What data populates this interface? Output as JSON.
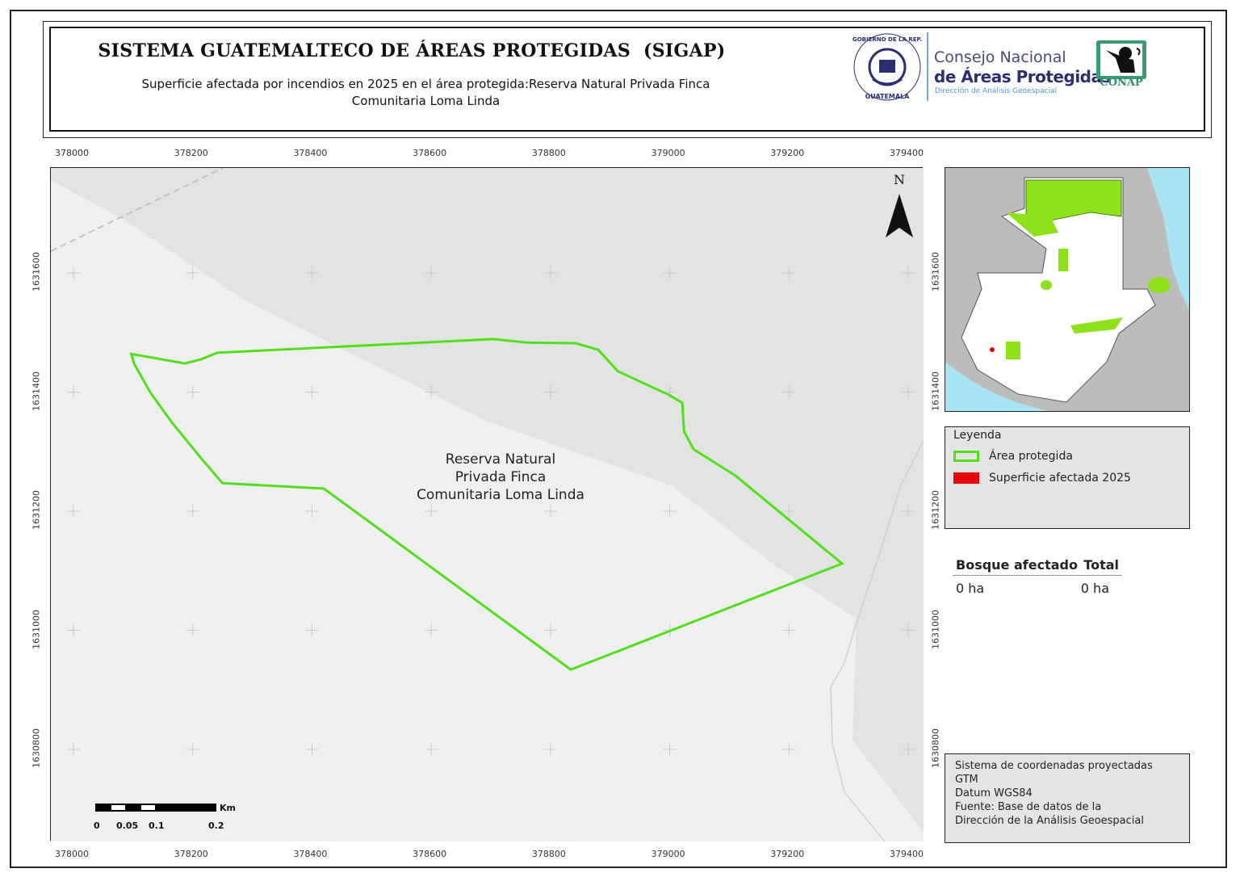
{
  "header": {
    "title": "SISTEMA GUATEMALTECO DE ÁREAS PROTEGIDAS  (SIGAP)",
    "subtitle": "Superficie afectada por incendios en 2025 en el área protegida:Reserva Natural Privada Finca Comunitaria Loma Linda",
    "logo_seal_text": "GOBIERNO DE LA REPÚBLICA · GUATEMALA",
    "org_line1": "Consejo Nacional",
    "org_line2": "de Áreas Protegidas",
    "org_line3": "Dirección de Análisis Geoespacial",
    "conap_label": "CONAP"
  },
  "map": {
    "easting_ticks": [
      "378000",
      "378200",
      "378400",
      "378600",
      "378800",
      "379000",
      "379200",
      "379400"
    ],
    "northing_ticks": [
      "1631600",
      "1631400",
      "1631200",
      "1631000",
      "1630800"
    ],
    "area_label": "Reserva Natural\nPrivada Finca\nComunitaria Loma Linda",
    "north_label": "N",
    "protected_area_outline": [
      [
        378097,
        1631464
      ],
      [
        378102,
        1631447
      ],
      [
        378129,
        1631399
      ],
      [
        378165,
        1631349
      ],
      [
        378214,
        1631289
      ],
      [
        378250,
        1631247
      ],
      [
        378420,
        1631238
      ],
      [
        378834,
        1630934
      ],
      [
        379289,
        1631112
      ],
      [
        379110,
        1631260
      ],
      [
        379040,
        1631304
      ],
      [
        379024,
        1631334
      ],
      [
        379021,
        1631382
      ],
      [
        378999,
        1631395
      ],
      [
        378913,
        1631435
      ],
      [
        378880,
        1631471
      ],
      [
        378842,
        1631482
      ],
      [
        378761,
        1631483
      ],
      [
        378704,
        1631489
      ],
      [
        378241,
        1631466
      ],
      [
        378214,
        1631455
      ],
      [
        378187,
        1631448
      ]
    ],
    "colors": {
      "outline": "#4fe01a",
      "affected": "#e8000b",
      "basemap_light": "#efefef",
      "basemap_dark": "#e2e4e2"
    }
  },
  "scale_bar": {
    "labels": [
      "0",
      "0.05",
      "0.1",
      "0.2"
    ],
    "unit": "Km"
  },
  "legend": {
    "title": "Leyenda",
    "items": [
      {
        "label": "Área protegida",
        "color": "#4fe01a",
        "style": "outline"
      },
      {
        "label": "Superficie afectada 2025",
        "color": "#e8000b",
        "style": "fill"
      }
    ]
  },
  "stats_table": {
    "headers": [
      "Bosque afectado",
      "Total"
    ],
    "row": [
      "0 ha",
      "0 ha"
    ]
  },
  "notes": [
    "Sistema de coordenadas proyectadas",
    "GTM",
    "Datum WGS84",
    "Fuente: Base de datos de la",
    "Dirección de la Análisis Geoespacial"
  ]
}
